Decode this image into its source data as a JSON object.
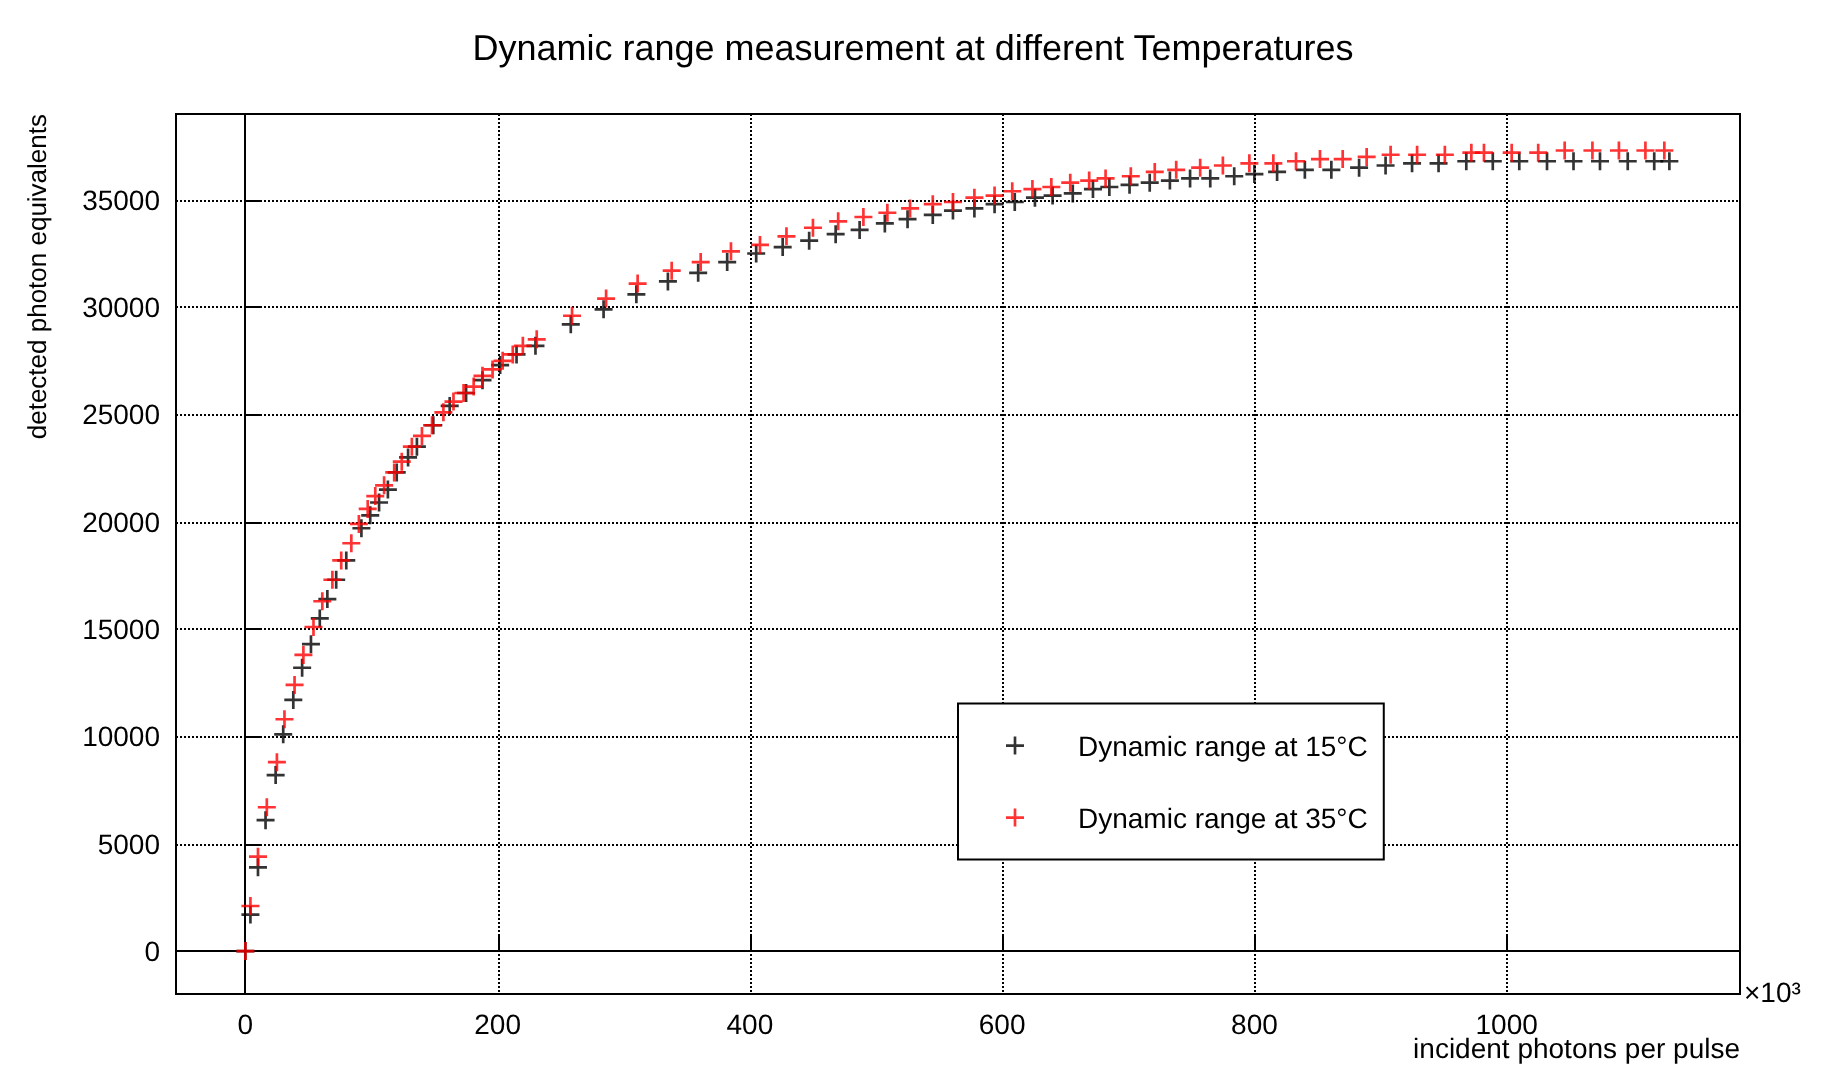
{
  "chart_data": {
    "type": "scatter",
    "title": "Dynamic range measurement at different Temperatures",
    "xlabel": "incident photons per pulse",
    "ylabel": "detected photon equivalents",
    "annotations": [
      "×10³"
    ],
    "xlim": [
      -55,
      1185
    ],
    "xticks": [
      0,
      200,
      400,
      600,
      800,
      1000
    ],
    "ylim": [
      -2000,
      39000
    ],
    "yticks": [
      0,
      5000,
      10000,
      15000,
      20000,
      25000,
      30000,
      35000
    ],
    "grid": true,
    "legend": "bottom right",
    "marker": "cross",
    "series": [
      {
        "name": "Dynamic range at 15°C",
        "color": "#000000",
        "x": [
          0,
          4,
          10,
          16,
          24,
          30,
          38,
          45,
          52,
          59,
          65,
          72,
          80,
          92,
          99,
          106,
          113,
          120,
          129,
          136,
          149,
          162,
          175,
          188,
          202,
          215,
          230,
          258,
          284,
          310,
          335,
          359,
          382,
          405,
          426,
          447,
          468,
          487,
          507,
          525,
          545,
          561,
          578,
          594,
          610,
          626,
          640,
          656,
          672,
          685,
          701,
          717,
          733,
          749,
          765,
          784,
          800,
          818,
          840,
          861,
          883,
          904,
          925,
          946,
          968,
          989,
          1010,
          1032,
          1053,
          1074,
          1096,
          1117,
          1129
        ],
        "values": [
          0,
          1700,
          3900,
          6100,
          8200,
          10100,
          11700,
          13200,
          14300,
          15500,
          16400,
          17300,
          18200,
          19700,
          20300,
          20900,
          21500,
          22300,
          23000,
          23500,
          24500,
          25400,
          26000,
          26600,
          27300,
          27800,
          28200,
          29200,
          29900,
          30600,
          31200,
          31600,
          32100,
          32500,
          32800,
          33100,
          33400,
          33600,
          33900,
          34100,
          34300,
          34500,
          34600,
          34800,
          34900,
          35100,
          35200,
          35300,
          35500,
          35600,
          35700,
          35800,
          35900,
          36000,
          36000,
          36100,
          36200,
          36300,
          36400,
          36400,
          36500,
          36600,
          36700,
          36700,
          36800,
          36800,
          36800,
          36800,
          36800,
          36800,
          36800,
          36800,
          36800
        ]
      },
      {
        "name": "Dynamic range at 35°C",
        "color": "#ff0000",
        "x": [
          0,
          4,
          10,
          17,
          25,
          31,
          39,
          46,
          54,
          61,
          69,
          76,
          84,
          90,
          97,
          103,
          110,
          118,
          124,
          132,
          140,
          148,
          157,
          165,
          173,
          181,
          188,
          196,
          204,
          212,
          220,
          231,
          259,
          286,
          311,
          338,
          361,
          385,
          408,
          429,
          450,
          470,
          490,
          509,
          527,
          545,
          561,
          578,
          594,
          608,
          624,
          639,
          654,
          669,
          682,
          702,
          721,
          738,
          757,
          775,
          796,
          815,
          833,
          852,
          870,
          889,
          908,
          929,
          951,
          972,
          982,
          1004,
          1025,
          1046,
          1068,
          1089,
          1110,
          1125
        ],
        "values": [
          0,
          2100,
          4400,
          6700,
          8800,
          10800,
          12400,
          13800,
          15100,
          16300,
          17300,
          18200,
          19000,
          19900,
          20600,
          21200,
          21700,
          22300,
          22800,
          23500,
          24000,
          24500,
          25100,
          25600,
          26000,
          26300,
          26800,
          27100,
          27500,
          27800,
          28200,
          28500,
          29600,
          30400,
          31100,
          31700,
          32100,
          32600,
          32900,
          33300,
          33700,
          34000,
          34200,
          34400,
          34600,
          34800,
          34900,
          35100,
          35200,
          35400,
          35500,
          35600,
          35800,
          35900,
          36000,
          36100,
          36300,
          36400,
          36500,
          36600,
          36700,
          36700,
          36800,
          36900,
          36900,
          37000,
          37100,
          37100,
          37100,
          37200,
          37200,
          37200,
          37200,
          37300,
          37300,
          37300,
          37300,
          37300
        ]
      }
    ]
  }
}
